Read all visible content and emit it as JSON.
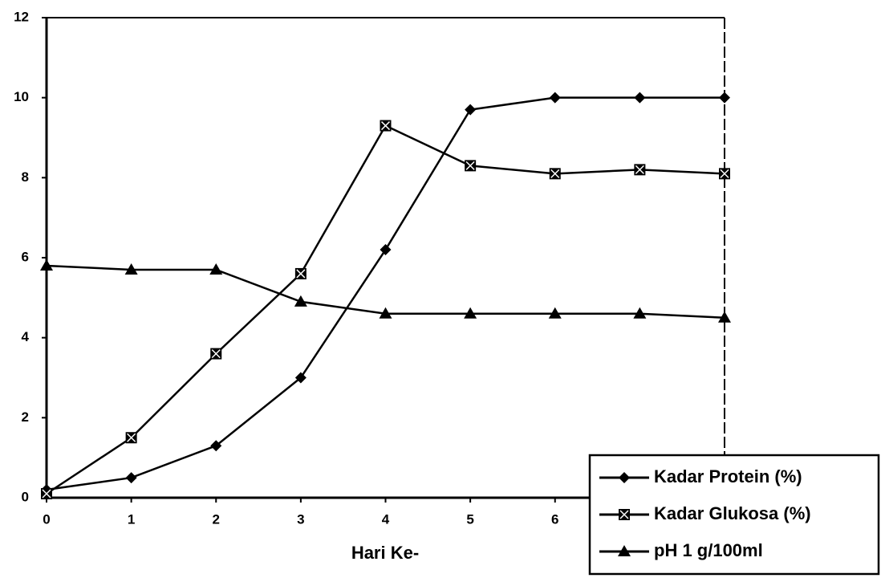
{
  "chart_data": {
    "type": "line",
    "x_label": "Hari Ke-",
    "x": [
      0,
      1,
      2,
      3,
      4,
      5,
      6,
      7,
      8
    ],
    "xlim": [
      0,
      8
    ],
    "xticks": [
      0,
      1,
      2,
      3,
      4,
      5,
      6
    ],
    "ylim": [
      0,
      12
    ],
    "yticks": [
      0,
      2,
      4,
      6,
      8,
      10,
      12
    ],
    "legend": "bottom-right",
    "series": [
      {
        "name": "Kadar Protein (%)",
        "color": "#000000",
        "marker": "diamond",
        "values": [
          0.2,
          0.5,
          1.3,
          3.0,
          6.2,
          9.7,
          10.0,
          10.0,
          10.0
        ]
      },
      {
        "name": "Kadar Glukosa (%)",
        "color": "#000000",
        "marker": "square",
        "values": [
          0.1,
          1.5,
          3.6,
          5.6,
          9.3,
          8.3,
          8.1,
          8.2,
          8.1
        ]
      },
      {
        "name": "pH 1 g/100ml",
        "color": "#000000",
        "marker": "triangle",
        "values": [
          5.8,
          5.7,
          5.7,
          4.9,
          4.6,
          4.6,
          4.6,
          4.6,
          4.5
        ]
      }
    ]
  }
}
